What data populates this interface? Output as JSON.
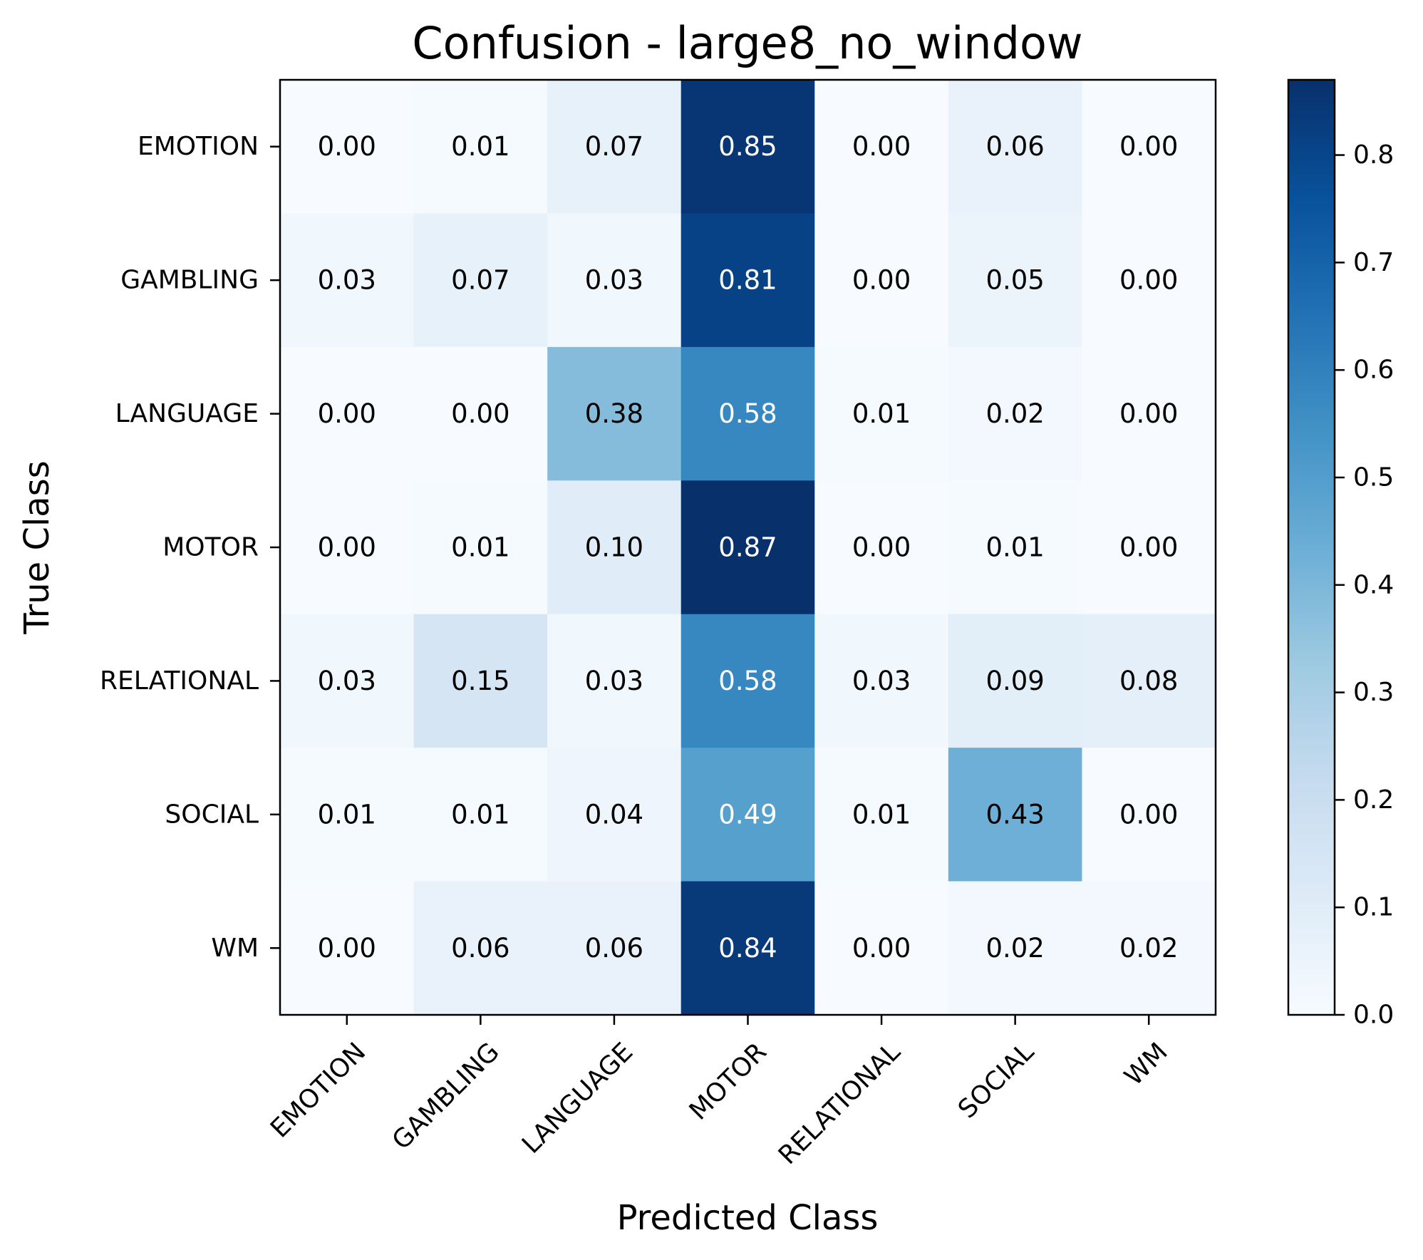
{
  "chart_data": {
    "type": "heatmap",
    "title": "Confusion - large8_no_window",
    "xlabel": "Predicted Class",
    "ylabel": "True Class",
    "x_categories": [
      "EMOTION",
      "GAMBLING",
      "LANGUAGE",
      "MOTOR",
      "RELATIONAL",
      "SOCIAL",
      "WM"
    ],
    "y_categories": [
      "EMOTION",
      "GAMBLING",
      "LANGUAGE",
      "MOTOR",
      "RELATIONAL",
      "SOCIAL",
      "WM"
    ],
    "values": [
      [
        0.0,
        0.01,
        0.07,
        0.85,
        0.0,
        0.06,
        0.0
      ],
      [
        0.03,
        0.07,
        0.03,
        0.81,
        0.0,
        0.05,
        0.0
      ],
      [
        0.0,
        0.0,
        0.38,
        0.58,
        0.01,
        0.02,
        0.0
      ],
      [
        0.0,
        0.01,
        0.1,
        0.87,
        0.0,
        0.01,
        0.0
      ],
      [
        0.03,
        0.15,
        0.03,
        0.58,
        0.03,
        0.09,
        0.08
      ],
      [
        0.01,
        0.01,
        0.04,
        0.49,
        0.01,
        0.43,
        0.0
      ],
      [
        0.0,
        0.06,
        0.06,
        0.84,
        0.0,
        0.02,
        0.02
      ]
    ],
    "value_format": "0.00",
    "colormap": "Blues",
    "colorbar": {
      "range": [
        0.0,
        0.87
      ],
      "ticks": [
        0.0,
        0.1,
        0.2,
        0.3,
        0.4,
        0.5,
        0.6,
        0.7,
        0.8
      ],
      "tick_labels": [
        "0.0",
        "0.1",
        "0.2",
        "0.3",
        "0.4",
        "0.5",
        "0.6",
        "0.7",
        "0.8"
      ]
    },
    "grid": false,
    "legend": "colorbar-right"
  }
}
